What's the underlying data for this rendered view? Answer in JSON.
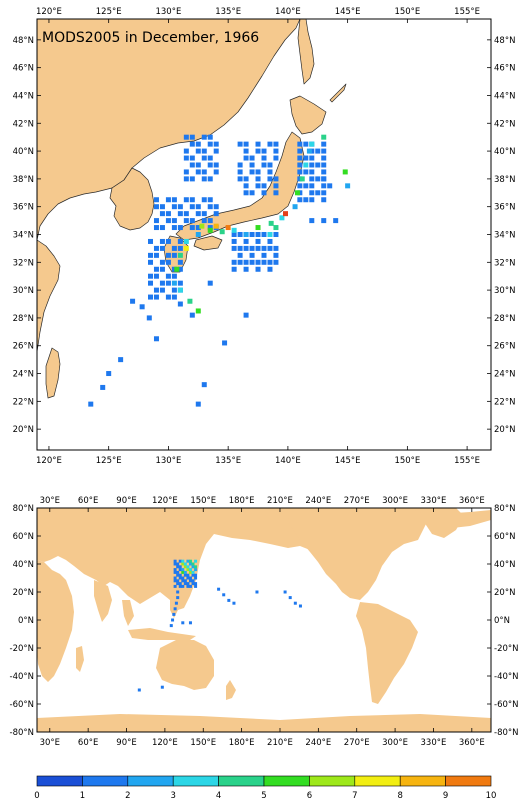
{
  "title": "MODS2005 in December, 1966",
  "colors": {
    "land": "#f5c98e",
    "coast": "#2a2a2a",
    "ocean": "#ffffff"
  },
  "top_map": {
    "x_ticks": [
      "120°E",
      "125°E",
      "130°E",
      "135°E",
      "140°E",
      "145°E",
      "150°E",
      "155°E"
    ],
    "y_ticks": [
      "48°N",
      "46°N",
      "44°N",
      "42°N",
      "40°N",
      "38°N",
      "36°N",
      "34°N",
      "32°N",
      "30°N",
      "28°N",
      "26°N",
      "24°N",
      "22°N",
      "20°N"
    ],
    "lon_range": [
      119,
      157
    ],
    "lat_range": [
      18.5,
      49.5
    ]
  },
  "bottom_map": {
    "x_ticks": [
      "30°E",
      "60°E",
      "90°E",
      "120°E",
      "150°E",
      "180°E",
      "210°E",
      "240°E",
      "270°E",
      "300°E",
      "330°E",
      "360°E"
    ],
    "y_ticks": [
      "80°N",
      "60°N",
      "40°N",
      "20°N",
      "0°N",
      "-20°N",
      "-40°N",
      "-60°N",
      "-80°N"
    ],
    "lon_range": [
      20,
      375
    ],
    "lat_range": [
      -80,
      80
    ]
  },
  "colorbar": {
    "labels": [
      "0",
      "1",
      "2",
      "3",
      "4",
      "5",
      "6",
      "7",
      "8",
      "9",
      "10"
    ],
    "colors": [
      "#1a4fd6",
      "#1e78ee",
      "#21a6f0",
      "#2cd6e6",
      "#2ad28a",
      "#33dd22",
      "#9ee81a",
      "#f2ee12",
      "#f6b410",
      "#f07a10",
      "#e2401c"
    ]
  }
}
